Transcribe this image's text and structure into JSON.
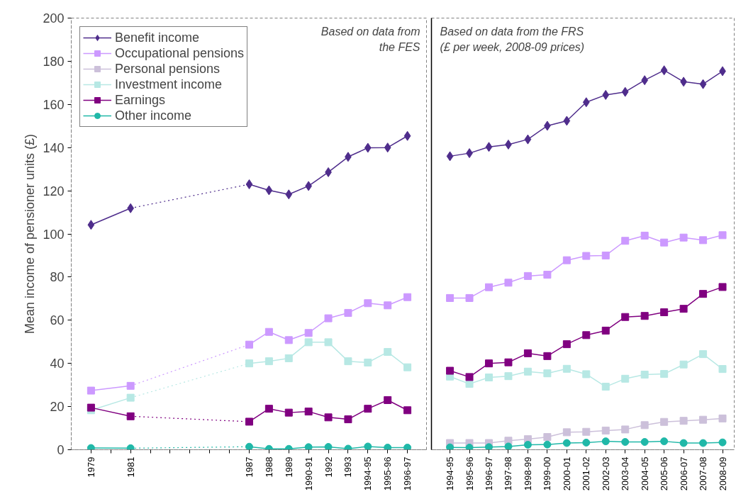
{
  "chart_data": [
    {
      "type": "line",
      "ylabel": "Mean income of pensioner units (£)",
      "legend": "top left",
      "ylim": [
        0,
        200
      ],
      "yticks": [
        0,
        20,
        40,
        60,
        80,
        100,
        120,
        140,
        160,
        180,
        200
      ],
      "grid": false,
      "annotations": [
        "Based on data from the FES"
      ],
      "categories": [
        "1979",
        null,
        "1981",
        null,
        null,
        null,
        null,
        null,
        "1987",
        "1988",
        "1989",
        "1990-91",
        "1992",
        "1993",
        "1994-95",
        "1995-96",
        "1996-97"
      ],
      "series": [
        {
          "name": "Benefit income",
          "color": "#4f2d8c",
          "marker": "diamond",
          "values": [
            104.2,
            null,
            111.9,
            null,
            null,
            null,
            null,
            null,
            123.0,
            120.2,
            118.3,
            122.2,
            128.6,
            135.7,
            139.9,
            140.0,
            145.4
          ]
        },
        {
          "name": "Occupational pensions",
          "color": "#cc99ff",
          "marker": "square",
          "values": [
            27.4,
            null,
            29.6,
            null,
            null,
            null,
            null,
            null,
            48.7,
            54.6,
            50.8,
            54.1,
            60.9,
            63.4,
            67.9,
            66.9,
            70.7
          ]
        },
        {
          "name": "Personal pensions",
          "color": "#ccc0da",
          "marker": "square",
          "values": [
            null,
            null,
            null,
            null,
            null,
            null,
            null,
            null,
            null,
            null,
            null,
            null,
            null,
            null,
            null,
            null,
            null
          ]
        },
        {
          "name": "Investment income",
          "color": "#b7e8e4",
          "marker": "square",
          "values": [
            18.3,
            null,
            24.1,
            null,
            null,
            null,
            null,
            null,
            40.0,
            41.0,
            42.4,
            49.8,
            49.8,
            41.0,
            40.4,
            45.3,
            38.2
          ]
        },
        {
          "name": "Earnings",
          "color": "#800080",
          "marker": "square",
          "values": [
            19.5,
            null,
            15.5,
            null,
            null,
            null,
            null,
            null,
            13.0,
            19.0,
            17.2,
            17.7,
            15.0,
            14.1,
            19.0,
            23.0,
            18.3
          ]
        },
        {
          "name": "Other income",
          "color": "#20b8a8",
          "marker": "circle",
          "values": [
            0.8,
            null,
            0.7,
            null,
            null,
            null,
            null,
            null,
            1.4,
            0.4,
            0.4,
            1.2,
            1.3,
            0.5,
            1.5,
            1.0,
            1.0
          ]
        }
      ]
    },
    {
      "type": "line",
      "ylim": [
        0,
        200
      ],
      "yticks": [
        0,
        20,
        40,
        60,
        80,
        100,
        120,
        140,
        160,
        180,
        200
      ],
      "grid": false,
      "tick_labels": "x",
      "annotations": [
        "Based on data from the FRS (£ per week, 2008-09 prices)"
      ],
      "categories": [
        "1994-95",
        "1995-96",
        "1996-97",
        "1997-98",
        "1998-99",
        "1999-00",
        "2000-01",
        "2001-02",
        "2002-03",
        "2003-04",
        "2004-05",
        "2005-06",
        "2006-07",
        "2007-08",
        "2008-09"
      ],
      "series": [
        {
          "color": "#4f2d8c",
          "marker": "diamond",
          "values": [
            136.0,
            137.4,
            140.3,
            141.4,
            143.8,
            150.1,
            152.4,
            161.0,
            164.4,
            165.8,
            171.2,
            175.8,
            170.5,
            169.4,
            175.4
          ]
        },
        {
          "color": "#cc99ff",
          "marker": "square",
          "values": [
            70.3,
            70.3,
            75.3,
            77.4,
            80.5,
            81.1,
            87.8,
            89.8,
            90.0,
            96.8,
            99.2,
            96.0,
            98.3,
            97.1,
            99.4
          ]
        },
        {
          "color": "#ccc0da",
          "marker": "square",
          "values": [
            3.1,
            3.1,
            3.1,
            4.2,
            4.9,
            5.9,
            8.1,
            8.3,
            8.9,
            9.4,
            11.4,
            12.9,
            13.4,
            13.9,
            14.5
          ]
        },
        {
          "color": "#b7e8e4",
          "marker": "square",
          "values": [
            33.9,
            30.5,
            33.5,
            34.1,
            36.2,
            35.4,
            37.5,
            35.0,
            29.2,
            32.9,
            34.8,
            35.1,
            39.5,
            44.3,
            37.4
          ]
        },
        {
          "color": "#800080",
          "marker": "square",
          "values": [
            36.6,
            33.7,
            40.0,
            40.5,
            44.7,
            43.4,
            48.9,
            53.1,
            55.2,
            61.5,
            62.0,
            63.7,
            65.3,
            72.2,
            75.4
          ]
        },
        {
          "color": "#20b8a8",
          "marker": "circle",
          "values": [
            1.1,
            1.0,
            1.2,
            1.5,
            2.3,
            2.4,
            3.1,
            3.3,
            3.9,
            3.6,
            3.6,
            3.9,
            3.1,
            3.1,
            3.4
          ]
        }
      ]
    }
  ]
}
